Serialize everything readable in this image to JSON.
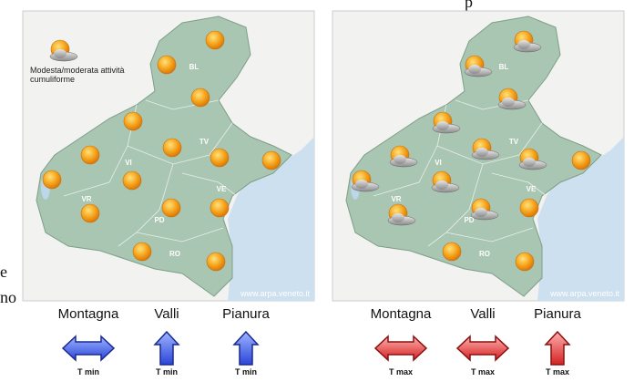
{
  "fragments": [
    "p",
    "e",
    "no"
  ],
  "maps": [
    {
      "note": [
        "Modesta/moderata attività",
        "cumuliforme"
      ],
      "provinces": [
        "BL",
        "TV",
        "VI",
        "VR",
        "PD",
        "VE",
        "RO"
      ],
      "credit": "www.arpa.veneto.it"
    },
    {
      "provinces": [
        "BL",
        "TV",
        "VI",
        "VR",
        "PD",
        "VE",
        "RO"
      ],
      "credit": "www.arpa.veneto.it"
    }
  ],
  "legends": [
    {
      "zones": [
        "Montagna",
        "Valli",
        "Pianura"
      ],
      "labels": [
        "T min",
        "T min",
        "T min"
      ]
    },
    {
      "zones": [
        "Montagna",
        "Valli",
        "Pianura"
      ],
      "labels": [
        "T max",
        "T max",
        "T max"
      ]
    }
  ]
}
